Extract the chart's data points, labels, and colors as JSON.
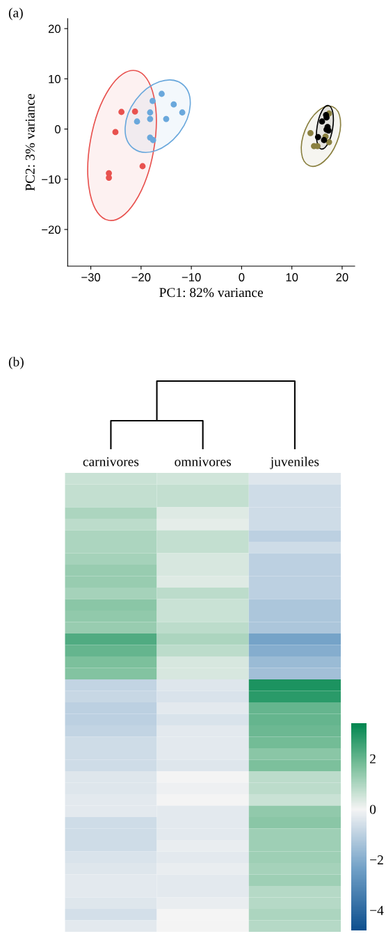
{
  "chart_data": [
    {
      "type": "scatter",
      "xlabel": "PC1: 82% variance",
      "ylabel": "PC2: 3% variance",
      "annotations": [
        "(a)"
      ],
      "xlim": [
        -34.6,
        22.5
      ],
      "ylim": [
        -27.3,
        22
      ],
      "xticks": [
        {
          "value": -30,
          "label": "−30"
        },
        {
          "value": -20,
          "label": "−20"
        },
        {
          "value": -10,
          "label": "−10"
        },
        0,
        10,
        20
      ],
      "yticks": [
        {
          "value": -20,
          "label": "−20"
        },
        {
          "value": -10,
          "label": "−10"
        },
        0,
        10,
        20
      ],
      "grid": false,
      "marker": "circle",
      "series": [
        {
          "color": "#e8524f",
          "x": [
            -23.9,
            -21.2,
            -25.1,
            -19.7,
            -26.4,
            -26.4
          ],
          "values": [
            3.4,
            3.5,
            -0.6,
            -7.4,
            -8.8,
            -9.7
          ]
        },
        {
          "color": "#6aa8dc",
          "x": [
            -15.9,
            -17.7,
            -13.5,
            -18.2,
            -11.8,
            -20.8,
            -18.2,
            -15.0,
            -18.2,
            -17.6
          ],
          "values": [
            7.0,
            5.6,
            4.9,
            3.3,
            3.3,
            1.5,
            2.0,
            2.0,
            -1.7,
            -2.2
          ]
        },
        {
          "color": "#8a8040",
          "x": [
            13.7,
            14.4,
            15.1,
            17.4,
            17.4,
            16.7
          ],
          "values": [
            -0.8,
            -3.4,
            -3.4,
            -2.6,
            3.1,
            -1.5
          ]
        },
        {
          "color": "#000000",
          "x": [
            16.8,
            16.0,
            17.1,
            17.3,
            15.2,
            16.4,
            16.9,
            16.9
          ],
          "values": [
            2.8,
            1.5,
            0.4,
            -0.3,
            -1.6,
            -2.2,
            2.3,
            -0.1
          ]
        }
      ]
    },
    {
      "type": "heatmap",
      "annotations": [
        "(b)"
      ],
      "categories": [
        "carnivores",
        "omnivores",
        "juveniles"
      ],
      "y_categories": [
        null,
        null,
        null,
        null,
        null,
        null,
        null,
        null,
        null,
        null,
        null,
        null,
        null,
        null,
        null,
        null,
        null,
        null,
        null,
        null,
        null,
        null,
        null,
        null,
        null,
        null,
        null,
        null,
        null,
        null,
        null,
        null,
        null,
        null,
        null,
        null,
        null,
        null,
        null,
        null
      ],
      "tick_labels": "x",
      "clim": [
        -4.8,
        3.4
      ],
      "cticks": [
        {
          "value": 2,
          "label": "2"
        },
        {
          "value": 0,
          "label": "0"
        },
        {
          "value": -2,
          "label": "−2"
        },
        {
          "value": -4,
          "label": "−4"
        }
      ],
      "cells": [
        [
          0.6,
          0.5,
          -0.4
        ],
        [
          0.7,
          0.7,
          -0.7
        ],
        [
          0.7,
          0.7,
          -0.7
        ],
        [
          1.0,
          0.3,
          -0.7
        ],
        [
          0.8,
          0.2,
          -0.7
        ],
        [
          1.0,
          0.7,
          -1.0
        ],
        [
          1.0,
          0.7,
          -0.7
        ],
        [
          1.1,
          0.4,
          -1.0
        ],
        [
          1.3,
          0.4,
          -1.0
        ],
        [
          1.3,
          0.3,
          -1.0
        ],
        [
          1.1,
          0.8,
          -1.0
        ],
        [
          1.5,
          0.6,
          -1.3
        ],
        [
          1.4,
          0.6,
          -1.3
        ],
        [
          1.3,
          0.8,
          -1.3
        ],
        [
          2.3,
          1.0,
          -2.3
        ],
        [
          2.0,
          0.8,
          -2.0
        ],
        [
          1.7,
          0.4,
          -1.6
        ],
        [
          1.6,
          0.4,
          -1.5
        ],
        [
          -0.9,
          -0.4,
          3.0
        ],
        [
          -0.8,
          -0.5,
          2.8
        ],
        [
          -1.0,
          -0.3,
          2.0
        ],
        [
          -1.0,
          -0.5,
          2.0
        ],
        [
          -0.9,
          -0.3,
          1.9
        ],
        [
          -0.7,
          -0.3,
          1.8
        ],
        [
          -0.7,
          -0.3,
          1.5
        ],
        [
          -0.7,
          -0.4,
          1.7
        ],
        [
          -0.4,
          0.0,
          0.8
        ],
        [
          -0.4,
          -0.1,
          0.8
        ],
        [
          -0.3,
          0.0,
          0.6
        ],
        [
          -0.3,
          -0.3,
          1.4
        ],
        [
          -0.7,
          -0.3,
          1.5
        ],
        [
          -0.7,
          -0.3,
          1.2
        ],
        [
          -0.7,
          -0.2,
          1.2
        ],
        [
          -0.5,
          -0.3,
          1.2
        ],
        [
          -0.4,
          -0.2,
          1.1
        ],
        [
          -0.3,
          -0.3,
          1.2
        ],
        [
          -0.3,
          -0.3,
          0.9
        ],
        [
          -0.4,
          -0.2,
          0.9
        ],
        [
          -0.6,
          0.0,
          1.0
        ],
        [
          -0.3,
          0.0,
          0.9
        ]
      ]
    }
  ]
}
